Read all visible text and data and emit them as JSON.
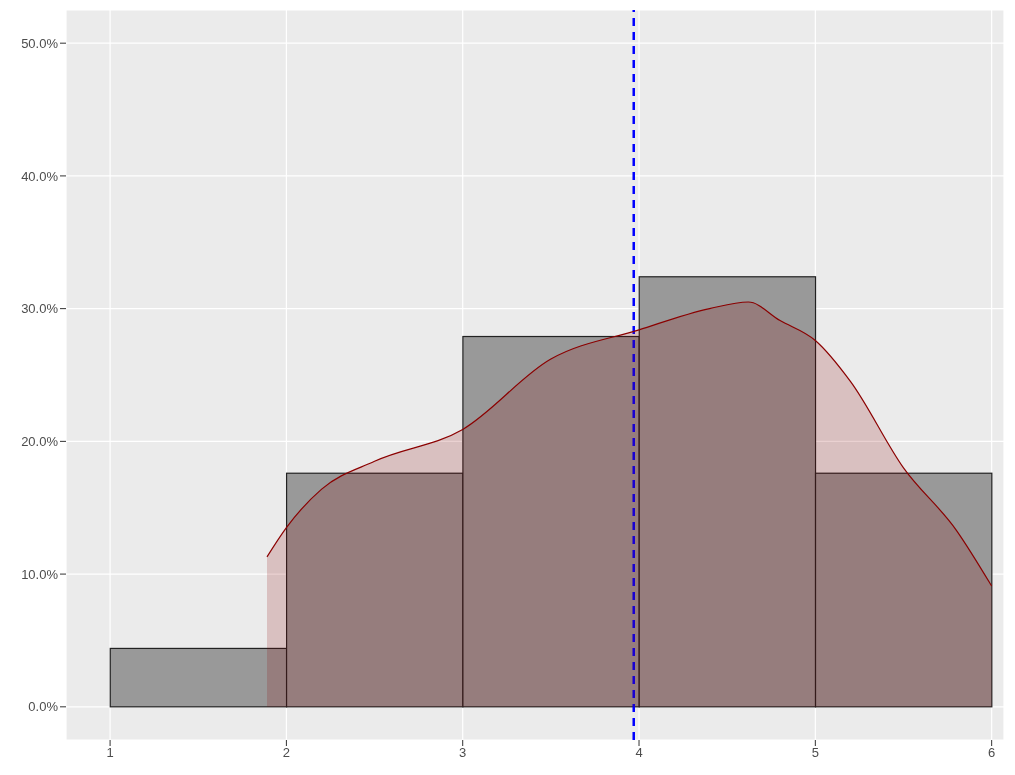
{
  "chart_data": {
    "type": "histogram",
    "bins": [
      1,
      2,
      3,
      4,
      5,
      6
    ],
    "values": [
      4.4,
      17.6,
      27.9,
      32.4,
      17.6
    ],
    "color": "#999999",
    "series": [
      {
        "type": "area",
        "color": "#8b0000",
        "x": [
          1.89,
          2.0,
          2.2,
          2.5,
          3.0,
          3.5,
          4.0,
          4.4,
          4.62,
          4.8,
          5.0,
          5.2,
          5.5,
          5.8,
          6.0
        ],
        "values": [
          11.3,
          13.5,
          16.4,
          18.5,
          20.9,
          26.2,
          28.4,
          30.0,
          30.5,
          29.1,
          27.6,
          24.5,
          18.0,
          13.3,
          9.1
        ]
      }
    ],
    "xlim": [
      0.75,
      6.07
    ],
    "xticks": [
      1,
      2,
      3,
      4,
      5,
      6
    ],
    "ylim": [
      -2.5,
      52.5
    ],
    "yticks": [
      {
        "value": 0,
        "label": "0.0%"
      },
      {
        "value": 10,
        "label": "10.0%"
      },
      {
        "value": 20,
        "label": "20.0%"
      },
      {
        "value": 30,
        "label": "30.0%"
      },
      {
        "value": 40,
        "label": "40.0%"
      },
      {
        "value": 50,
        "label": "50.0%"
      }
    ],
    "ref_lines": [
      {
        "axis": "x",
        "value": 3.97,
        "color": "#0000ff",
        "line_style": "dashed"
      }
    ],
    "grid": true
  }
}
